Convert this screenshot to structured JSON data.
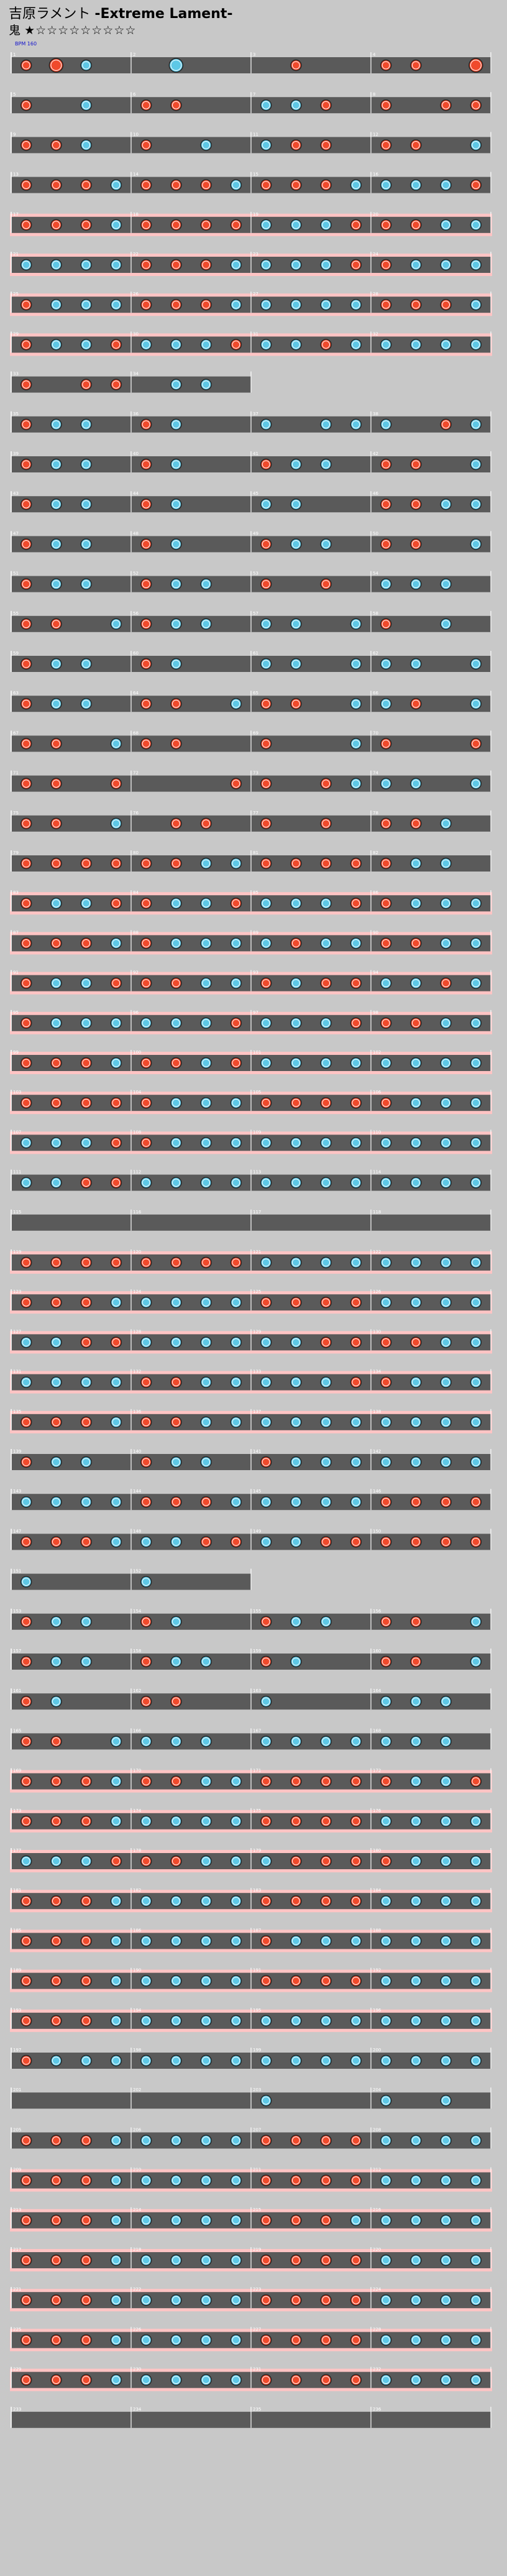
{
  "song": {
    "title": "吉原ラメント",
    "subtitle": "-Extreme Lament-",
    "difficulty_label": "鬼",
    "level_stars": "★☆☆☆☆☆☆☆☆☆"
  },
  "colors": {
    "background": "#c8c8c8",
    "lane_normal": "#5a5a5a",
    "lane_gogo": "#ffc4c4",
    "lane_gogo_inner": "#5a5a5a",
    "don": "#f04a2c",
    "ka": "#5ec8e6",
    "note_outline": "#222222",
    "barline": "#ffffff",
    "measure_number": "#ffffff",
    "speed_label": "#1010cc"
  },
  "chart_data": {
    "type": "taiko_score",
    "measures_per_row": 4,
    "initial_speed_label": "BPM 160",
    "rows": [
      {
        "start": 1,
        "measures": 4,
        "gogo": false,
        "pattern": "dDk--K---d--dd-D"
      },
      {
        "start": 5,
        "measures": 4,
        "gogo": false,
        "pattern": "d-k-dd--kkd-d-dd"
      },
      {
        "start": 9,
        "measures": 4,
        "gogo": false,
        "pattern": "ddk-d-k-kdd-dd-k"
      },
      {
        "start": 13,
        "measures": 4,
        "gogo": false,
        "pattern": "dddkdddkdddkkkkd"
      },
      {
        "start": 17,
        "measures": 4,
        "gogo": true,
        "pattern": "dddkddddkkkdddkk"
      },
      {
        "start": 21,
        "measures": 4,
        "gogo": true,
        "pattern": "kkkkdddkkkkddkkk"
      },
      {
        "start": 25,
        "measures": 4,
        "gogo": true,
        "pattern": "dkkkdddkkkkkdddk"
      },
      {
        "start": 29,
        "measures": 4,
        "gogo": true,
        "pattern": "dkkdkkkdkkdkkkkk"
      },
      {
        "start": 33,
        "measures": 2,
        "gogo": false,
        "pattern": "d-dd-kk-"
      },
      {
        "start": 35,
        "measures": 4,
        "gogo": false,
        "pattern": "dkk-dk--k-kkk-dk"
      },
      {
        "start": 39,
        "measures": 4,
        "gogo": false,
        "pattern": "dkk-dk--dkk-dd-k"
      },
      {
        "start": 43,
        "measures": 4,
        "gogo": false,
        "pattern": "dkk-dk--kk--ddkk"
      },
      {
        "start": 47,
        "measures": 4,
        "gogo": false,
        "pattern": "dkk-dk--dkk-dd-k"
      },
      {
        "start": 51,
        "measures": 4,
        "gogo": false,
        "pattern": "dkk-dkk-d-d-kkk-"
      },
      {
        "start": 55,
        "measures": 4,
        "gogo": false,
        "pattern": "dd-kdkk-kk-kd-k-"
      },
      {
        "start": 59,
        "measures": 4,
        "gogo": false,
        "pattern": "dkk-dk--kk-kkk-k"
      },
      {
        "start": 63,
        "measures": 4,
        "gogo": false,
        "pattern": "dkk-dd-kdd-kkd-k"
      },
      {
        "start": 67,
        "measures": 4,
        "gogo": false,
        "pattern": "dd-kdd--d--kd--d"
      },
      {
        "start": 71,
        "measures": 4,
        "gogo": false,
        "pattern": "dd-d---dd-dkkk-k"
      },
      {
        "start": 75,
        "measures": 4,
        "gogo": false,
        "pattern": "dd-k-dd-d-d-ddk-"
      },
      {
        "start": 79,
        "measures": 4,
        "gogo": false,
        "pattern": "ddddddkkdddddkk-"
      },
      {
        "start": 83,
        "measures": 4,
        "gogo": true,
        "pattern": "dkkddkkdkkkddkkk"
      },
      {
        "start": 87,
        "measures": 4,
        "gogo": true,
        "pattern": "dddkdkkkkdkkddkk"
      },
      {
        "start": 91,
        "measures": 4,
        "gogo": true,
        "pattern": "dkkdddkkdkddkkdk"
      },
      {
        "start": 95,
        "measures": 4,
        "gogo": true,
        "pattern": "dkkkkkkdkkkdddkk"
      },
      {
        "start": 99,
        "measures": 4,
        "gogo": true,
        "pattern": "dddkddkdkkkkkkkk"
      },
      {
        "start": 103,
        "measures": 4,
        "gogo": true,
        "pattern": "dddddkkkdddddkkk"
      },
      {
        "start": 107,
        "measures": 4,
        "gogo": true,
        "pattern": "kkkddkkkkkkkkkkk"
      },
      {
        "start": 111,
        "measures": 4,
        "gogo": false,
        "pattern": "kkddkkkkkkkkkkkk"
      },
      {
        "start": 115,
        "measures": 4,
        "gogo": false,
        "pattern": "----------------"
      },
      {
        "start": 119,
        "measures": 4,
        "gogo": true,
        "pattern": "ddddddddkkkkkkkk"
      },
      {
        "start": 123,
        "measures": 4,
        "gogo": true,
        "pattern": "dddkkkkkddddkkkk"
      },
      {
        "start": 127,
        "measures": 4,
        "gogo": true,
        "pattern": "kkddkkkkkkddddkk"
      },
      {
        "start": 131,
        "measures": 4,
        "gogo": true,
        "pattern": "kkkkddkkkkkddkkk"
      },
      {
        "start": 135,
        "measures": 4,
        "gogo": true,
        "pattern": "dddkddkkkkkkkkkk"
      },
      {
        "start": 139,
        "measures": 4,
        "gogo": false,
        "pattern": "dkk-dkk-dkkkkkkk"
      },
      {
        "start": 143,
        "measures": 4,
        "gogo": false,
        "pattern": "kkkkdddkkkkkdddd"
      },
      {
        "start": 147,
        "measures": 4,
        "gogo": false,
        "pattern": "dddkkkddkkdddddd"
      },
      {
        "start": 151,
        "measures": 2,
        "gogo": false,
        "pattern": "k---k---"
      },
      {
        "start": 153,
        "measures": 4,
        "gogo": false,
        "pattern": "dkk-dk--dkk-dd-k"
      },
      {
        "start": 157,
        "measures": 4,
        "gogo": false,
        "pattern": "dkk-dkk-dk--dd-k"
      },
      {
        "start": 161,
        "measures": 4,
        "gogo": false,
        "pattern": "dk--dd--k---kkk-"
      },
      {
        "start": 165,
        "measures": 4,
        "gogo": false,
        "pattern": "dd-kkkk-kkkkkkk-"
      },
      {
        "start": 169,
        "measures": 4,
        "gogo": true,
        "pattern": "dddkddkkdddddkkd"
      },
      {
        "start": 173,
        "measures": 4,
        "gogo": true,
        "pattern": "dddkkkkkddddkkkk"
      },
      {
        "start": 177,
        "measures": 4,
        "gogo": true,
        "pattern": "kkkdddkkkddddkkk"
      },
      {
        "start": 181,
        "measures": 4,
        "gogo": true,
        "pattern": "dddkkkkkddddkkkk"
      },
      {
        "start": 185,
        "measures": 4,
        "gogo": true,
        "pattern": "dddkkkkkdkkkkkkk"
      },
      {
        "start": 189,
        "measures": 4,
        "gogo": true,
        "pattern": "dddkkkkkddddkkkk"
      },
      {
        "start": 193,
        "measures": 4,
        "gogo": true,
        "pattern": "dddkkkkkkkkkkkkk"
      },
      {
        "start": 197,
        "measures": 4,
        "gogo": false,
        "pattern": "dkkkkkkkkkkkkkkk"
      },
      {
        "start": 201,
        "measures": 4,
        "gogo": false,
        "pattern": "--------k---k-k-"
      },
      {
        "start": 205,
        "measures": 4,
        "gogo": false,
        "pattern": "dddkkkkkddddkkkk"
      },
      {
        "start": 209,
        "measures": 4,
        "gogo": true,
        "pattern": "dddkkkkkddddkkkk"
      },
      {
        "start": 213,
        "measures": 4,
        "gogo": true,
        "pattern": "dddkkkkkdddkkkkk"
      },
      {
        "start": 217,
        "measures": 4,
        "gogo": true,
        "pattern": "dddkkkkkddddkkkk"
      },
      {
        "start": 221,
        "measures": 4,
        "gogo": true,
        "pattern": "dddkkkkkddddkkkk"
      },
      {
        "start": 225,
        "measures": 4,
        "gogo": true,
        "pattern": "dddkkkkkddddkkkk"
      },
      {
        "start": 229,
        "measures": 4,
        "gogo": true,
        "pattern": "dddkkkkkddddkkkk"
      },
      {
        "start": 233,
        "measures": 4,
        "gogo": false,
        "pattern": "----------------"
      }
    ]
  }
}
